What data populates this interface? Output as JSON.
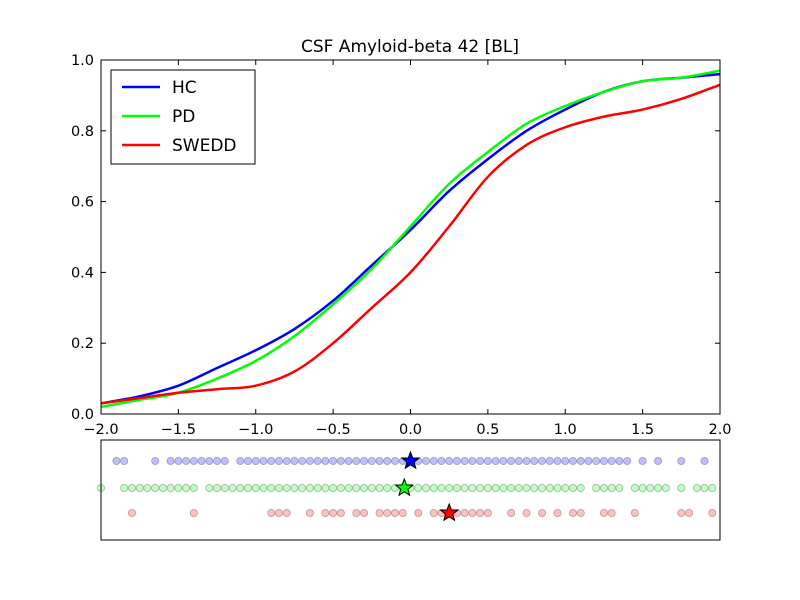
{
  "chart_data": [
    {
      "type": "line",
      "title": "CSF Amyloid-beta 42 [BL]",
      "xlabel": "",
      "ylabel": "",
      "xlim": [
        -2.0,
        2.0
      ],
      "ylim": [
        0.0,
        1.0
      ],
      "xticks": [
        "−2.0",
        "−1.5",
        "−1.0",
        "−0.5",
        "0.0",
        "0.5",
        "1.0",
        "1.5",
        "2.0"
      ],
      "xtick_values": [
        -2.0,
        -1.5,
        -1.0,
        -0.5,
        0.0,
        0.5,
        1.0,
        1.5,
        2.0
      ],
      "yticks": [
        "0.0",
        "0.2",
        "0.4",
        "0.6",
        "0.8",
        "1.0"
      ],
      "ytick_values": [
        0.0,
        0.2,
        0.4,
        0.6,
        0.8,
        1.0
      ],
      "grid": false,
      "legend_position": "top-left",
      "series": [
        {
          "name": "HC",
          "color": "#0000ff",
          "x": [
            -2.0,
            -1.75,
            -1.5,
            -1.25,
            -1.0,
            -0.75,
            -0.5,
            -0.25,
            0.0,
            0.25,
            0.5,
            0.75,
            1.0,
            1.25,
            1.5,
            1.75,
            2.0
          ],
          "y": [
            0.03,
            0.05,
            0.08,
            0.13,
            0.18,
            0.24,
            0.32,
            0.42,
            0.52,
            0.63,
            0.72,
            0.8,
            0.86,
            0.91,
            0.94,
            0.95,
            0.96
          ]
        },
        {
          "name": "PD",
          "color": "#00ff00",
          "x": [
            -2.0,
            -1.75,
            -1.5,
            -1.25,
            -1.0,
            -0.75,
            -0.5,
            -0.25,
            0.0,
            0.25,
            0.5,
            0.75,
            1.0,
            1.25,
            1.5,
            1.75,
            2.0
          ],
          "y": [
            0.02,
            0.04,
            0.06,
            0.1,
            0.15,
            0.22,
            0.31,
            0.41,
            0.53,
            0.65,
            0.74,
            0.82,
            0.87,
            0.91,
            0.94,
            0.95,
            0.97
          ]
        },
        {
          "name": "SWEDD",
          "color": "#ff0000",
          "x": [
            -2.0,
            -1.75,
            -1.5,
            -1.25,
            -1.0,
            -0.75,
            -0.5,
            -0.25,
            0.0,
            0.25,
            0.5,
            0.75,
            1.0,
            1.25,
            1.5,
            1.75,
            2.0
          ],
          "y": [
            0.03,
            0.045,
            0.06,
            0.07,
            0.08,
            0.12,
            0.2,
            0.3,
            0.4,
            0.53,
            0.67,
            0.76,
            0.81,
            0.84,
            0.86,
            0.89,
            0.93
          ]
        }
      ]
    },
    {
      "type": "scatter",
      "title": "",
      "xlim": [
        -2.0,
        2.0
      ],
      "grid": false,
      "series": [
        {
          "name": "HC",
          "color": "#0000ff",
          "mean_marker": "star",
          "mean": 0.0,
          "x": [
            -1.9,
            -1.85,
            -1.65,
            -1.55,
            -1.5,
            -1.45,
            -1.4,
            -1.35,
            -1.3,
            -1.25,
            -1.2,
            -1.1,
            -1.05,
            -1.0,
            -0.95,
            -0.9,
            -0.85,
            -0.8,
            -0.75,
            -0.7,
            -0.65,
            -0.6,
            -0.55,
            -0.5,
            -0.45,
            -0.4,
            -0.35,
            -0.3,
            -0.25,
            -0.2,
            -0.15,
            -0.1,
            -0.05,
            0.05,
            0.1,
            0.15,
            0.2,
            0.25,
            0.3,
            0.35,
            0.4,
            0.45,
            0.5,
            0.55,
            0.6,
            0.65,
            0.7,
            0.75,
            0.8,
            0.85,
            0.9,
            0.95,
            1.0,
            1.05,
            1.1,
            1.15,
            1.2,
            1.25,
            1.3,
            1.35,
            1.4,
            1.5,
            1.6,
            1.75,
            1.9
          ]
        },
        {
          "name": "PD",
          "color": "#00ff00",
          "mean_marker": "star",
          "mean": -0.04,
          "x": [
            -2.0,
            -1.85,
            -1.8,
            -1.75,
            -1.7,
            -1.65,
            -1.6,
            -1.55,
            -1.5,
            -1.45,
            -1.4,
            -1.3,
            -1.25,
            -1.2,
            -1.15,
            -1.1,
            -1.05,
            -1.0,
            -0.95,
            -0.9,
            -0.85,
            -0.8,
            -0.75,
            -0.7,
            -0.65,
            -0.6,
            -0.55,
            -0.5,
            -0.45,
            -0.4,
            -0.35,
            -0.3,
            -0.25,
            -0.2,
            -0.15,
            -0.1,
            -0.05,
            0.0,
            0.05,
            0.1,
            0.15,
            0.2,
            0.25,
            0.3,
            0.35,
            0.4,
            0.45,
            0.5,
            0.55,
            0.6,
            0.65,
            0.7,
            0.75,
            0.8,
            0.85,
            0.9,
            0.95,
            1.0,
            1.05,
            1.1,
            1.2,
            1.25,
            1.3,
            1.35,
            1.45,
            1.5,
            1.55,
            1.6,
            1.65,
            1.75,
            1.85,
            1.9,
            1.95
          ]
        },
        {
          "name": "SWEDD",
          "color": "#ff0000",
          "mean_marker": "star",
          "mean": 0.25,
          "x": [
            -1.8,
            -1.4,
            -0.9,
            -0.85,
            -0.8,
            -0.65,
            -0.55,
            -0.5,
            -0.45,
            -0.35,
            -0.3,
            -0.2,
            -0.15,
            -0.1,
            -0.05,
            0.05,
            0.15,
            0.2,
            0.3,
            0.35,
            0.4,
            0.45,
            0.5,
            0.65,
            0.75,
            0.85,
            0.95,
            1.05,
            1.1,
            1.25,
            1.3,
            1.45,
            1.75,
            1.8,
            1.95
          ]
        }
      ]
    }
  ]
}
